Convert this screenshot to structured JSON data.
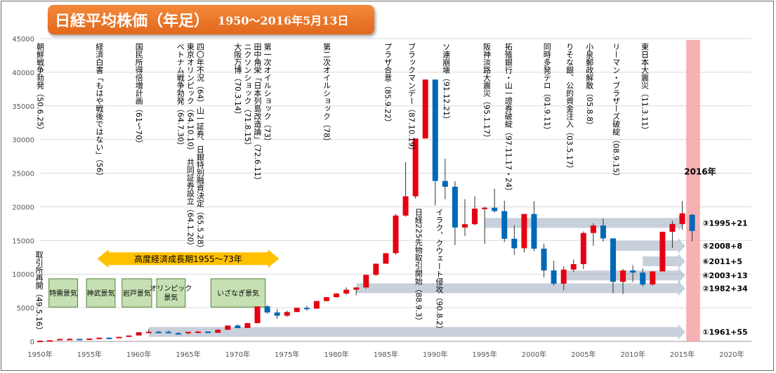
{
  "title": "日経平均株価（年足）",
  "subtitle": "1950～2016年5月13日",
  "chart_data": {
    "type": "candlestick",
    "y_ticks": [
      "0",
      "5000",
      "10000",
      "15000",
      "20000",
      "25000",
      "30000",
      "35000",
      "40000",
      "45000"
    ],
    "ylim": [
      0,
      45000
    ],
    "x_ticks": [
      "1950年",
      "1955年",
      "1960年",
      "1965年",
      "1970年",
      "1975年",
      "1980年",
      "1985年",
      "1990年",
      "1995年",
      "2000年",
      "2005年",
      "2010年",
      "2015年",
      "2020年"
    ],
    "xlim": [
      1950,
      2022
    ],
    "grid": "horizontal",
    "candles": [
      {
        "year": 1950,
        "open": 85,
        "high": 120,
        "low": 85,
        "close": 101
      },
      {
        "year": 1951,
        "open": 102,
        "high": 170,
        "low": 95,
        "close": 166
      },
      {
        "year": 1952,
        "open": 166,
        "high": 362,
        "low": 160,
        "close": 362
      },
      {
        "year": 1953,
        "open": 362,
        "high": 474,
        "low": 295,
        "close": 377
      },
      {
        "year": 1954,
        "open": 374,
        "high": 378,
        "low": 315,
        "close": 356
      },
      {
        "year": 1955,
        "open": 356,
        "high": 425,
        "low": 350,
        "close": 425
      },
      {
        "year": 1956,
        "open": 426,
        "high": 549,
        "low": 420,
        "close": 549
      },
      {
        "year": 1957,
        "open": 550,
        "high": 595,
        "low": 470,
        "close": 474
      },
      {
        "year": 1958,
        "open": 476,
        "high": 666,
        "low": 473,
        "close": 666
      },
      {
        "year": 1959,
        "open": 668,
        "high": 874,
        "low": 665,
        "close": 874
      },
      {
        "year": 1960,
        "open": 880,
        "high": 1356,
        "low": 870,
        "close": 1356
      },
      {
        "year": 1961,
        "open": 1360,
        "high": 1829,
        "low": 1258,
        "close": 1432
      },
      {
        "year": 1962,
        "open": 1430,
        "high": 1589,
        "low": 1216,
        "close": 1420
      },
      {
        "year": 1963,
        "open": 1420,
        "high": 1634,
        "low": 1200,
        "close": 1225
      },
      {
        "year": 1964,
        "open": 1225,
        "high": 1369,
        "low": 1202,
        "close": 1216
      },
      {
        "year": 1965,
        "open": 1216,
        "high": 1417,
        "low": 1020,
        "close": 1417
      },
      {
        "year": 1966,
        "open": 1420,
        "high": 1588,
        "low": 1400,
        "close": 1452
      },
      {
        "year": 1967,
        "open": 1455,
        "high": 1506,
        "low": 1250,
        "close": 1283
      },
      {
        "year": 1968,
        "open": 1285,
        "high": 1851,
        "low": 1266,
        "close": 1714
      },
      {
        "year": 1969,
        "open": 1716,
        "high": 2358,
        "low": 1700,
        "close": 2358
      },
      {
        "year": 1970,
        "open": 2360,
        "high": 2534,
        "low": 1929,
        "close": 1987
      },
      {
        "year": 1971,
        "open": 1990,
        "high": 2740,
        "low": 1981,
        "close": 2714
      },
      {
        "year": 1972,
        "open": 2712,
        "high": 5207,
        "low": 2700,
        "close": 5207
      },
      {
        "year": 1973,
        "open": 5210,
        "high": 5359,
        "low": 4100,
        "close": 4307
      },
      {
        "year": 1974,
        "open": 4310,
        "high": 4788,
        "low": 3355,
        "close": 3817
      },
      {
        "year": 1975,
        "open": 3820,
        "high": 4564,
        "low": 3630,
        "close": 4358
      },
      {
        "year": 1976,
        "open": 4360,
        "high": 4990,
        "low": 4358,
        "close": 4990
      },
      {
        "year": 1977,
        "open": 4990,
        "high": 5287,
        "low": 4597,
        "close": 4865
      },
      {
        "year": 1978,
        "open": 4868,
        "high": 6001,
        "low": 4867,
        "close": 6001
      },
      {
        "year": 1979,
        "open": 6002,
        "high": 6590,
        "low": 5934,
        "close": 6569
      },
      {
        "year": 1980,
        "open": 6570,
        "high": 7188,
        "low": 6475,
        "close": 7116
      },
      {
        "year": 1981,
        "open": 7116,
        "high": 8019,
        "low": 6957,
        "close": 7681
      },
      {
        "year": 1982,
        "open": 7682,
        "high": 8026,
        "low": 6849,
        "close": 8016
      },
      {
        "year": 1983,
        "open": 8017,
        "high": 9893,
        "low": 7803,
        "close": 9893
      },
      {
        "year": 1984,
        "open": 9895,
        "high": 11577,
        "low": 9703,
        "close": 11542
      },
      {
        "year": 1985,
        "open": 11543,
        "high": 13129,
        "low": 11545,
        "close": 13113
      },
      {
        "year": 1986,
        "open": 13114,
        "high": 18936,
        "low": 12881,
        "close": 18701
      },
      {
        "year": 1987,
        "open": 18702,
        "high": 26646,
        "low": 18544,
        "close": 21564
      },
      {
        "year": 1988,
        "open": 21565,
        "high": 30159,
        "low": 21217,
        "close": 30159
      },
      {
        "year": 1989,
        "open": 30160,
        "high": 38915,
        "low": 30183,
        "close": 38915
      },
      {
        "year": 1990,
        "open": 38916,
        "high": 38712,
        "low": 20221,
        "close": 23848
      },
      {
        "year": 1991,
        "open": 23849,
        "high": 27146,
        "low": 21123,
        "close": 22983
      },
      {
        "year": 1992,
        "open": 22984,
        "high": 23801,
        "low": 14309,
        "close": 16924
      },
      {
        "year": 1993,
        "open": 16925,
        "high": 21148,
        "low": 15671,
        "close": 17417
      },
      {
        "year": 1994,
        "open": 17418,
        "high": 21552,
        "low": 17242,
        "close": 19723
      },
      {
        "year": 1995,
        "open": 19724,
        "high": 20023,
        "low": 14485,
        "close": 19868
      },
      {
        "year": 1996,
        "open": 19869,
        "high": 22666,
        "low": 19161,
        "close": 19361
      },
      {
        "year": 1997,
        "open": 19362,
        "high": 20910,
        "low": 14775,
        "close": 15258
      },
      {
        "year": 1998,
        "open": 15259,
        "high": 17264,
        "low": 12879,
        "close": 13842
      },
      {
        "year": 1999,
        "open": 13843,
        "high": 18934,
        "low": 13232,
        "close": 18934
      },
      {
        "year": 2000,
        "open": 18935,
        "high": 20833,
        "low": 13423,
        "close": 13785
      },
      {
        "year": 2001,
        "open": 13786,
        "high": 14529,
        "low": 9504,
        "close": 10542
      },
      {
        "year": 2002,
        "open": 10543,
        "high": 11979,
        "low": 8303,
        "close": 8578
      },
      {
        "year": 2003,
        "open": 8579,
        "high": 11161,
        "low": 7607,
        "close": 10676
      },
      {
        "year": 2004,
        "open": 10677,
        "high": 12163,
        "low": 10299,
        "close": 11488
      },
      {
        "year": 2005,
        "open": 11489,
        "high": 16344,
        "low": 10770,
        "close": 16111
      },
      {
        "year": 2006,
        "open": 16112,
        "high": 17563,
        "low": 14218,
        "close": 17225
      },
      {
        "year": 2007,
        "open": 17226,
        "high": 18261,
        "low": 14837,
        "close": 15307
      },
      {
        "year": 2008,
        "open": 15308,
        "high": 15156,
        "low": 7162,
        "close": 8859
      },
      {
        "year": 2009,
        "open": 8860,
        "high": 10767,
        "low": 7054,
        "close": 10546
      },
      {
        "year": 2010,
        "open": 10547,
        "high": 11339,
        "low": 8824,
        "close": 10228
      },
      {
        "year": 2011,
        "open": 10229,
        "high": 10857,
        "low": 8160,
        "close": 8455
      },
      {
        "year": 2012,
        "open": 8456,
        "high": 10395,
        "low": 8295,
        "close": 10395
      },
      {
        "year": 2013,
        "open": 10396,
        "high": 16320,
        "low": 10398,
        "close": 16291
      },
      {
        "year": 2014,
        "open": 16292,
        "high": 17935,
        "low": 13885,
        "close": 17450
      },
      {
        "year": 2015,
        "open": 17451,
        "high": 20868,
        "low": 16592,
        "close": 19033
      },
      {
        "year": 2016,
        "open": 18818,
        "high": 18951,
        "low": 14865,
        "close": 16412
      }
    ],
    "up_color": "#e60012",
    "down_color": "#0068b7",
    "highlight": {
      "from": 2015.4,
      "to": 2016.8,
      "color": "#f4a3a6",
      "label": "2016年"
    },
    "events": [
      {
        "year": 1950,
        "text": "朝鮮戦争勃発（50.6.25）",
        "top": true
      },
      {
        "year": 1956,
        "text": "経済白書「もはや戦後ではない」（56）",
        "top": true
      },
      {
        "year": 1960,
        "text": "国民所得倍増計画（61～70）",
        "top": true
      },
      {
        "year": 1964.2,
        "text": "ベトナム戦争勃発（64.7.30）",
        "top": true
      },
      {
        "year": 1965.2,
        "text": "東京オリンピック（64.10.10）　共同証券設立（64.1.20）",
        "top": true
      },
      {
        "year": 1966.2,
        "text": "四〇年不況（64）山一証券、日銀特別融資決定（65.5.28）",
        "top": true
      },
      {
        "year": 1970,
        "text": "大阪万博（70.3.14）",
        "top": true
      },
      {
        "year": 1971,
        "text": "ニクソンショック（71.8.15）",
        "top": true
      },
      {
        "year": 1972,
        "text": "田中角栄「日本列島改造論」（72.6.11）",
        "top": true
      },
      {
        "year": 1973,
        "text": "第一次オイルショック（73）",
        "top": true
      },
      {
        "year": 1979,
        "text": "第二次オイルショック（78）",
        "top": true
      },
      {
        "year": 1985.2,
        "text": "プラザ合意（85.9.22）",
        "top": true
      },
      {
        "year": 1987.6,
        "text": "ブラックマンデー（87.10.19）",
        "top": true
      },
      {
        "year": 1991.1,
        "text": "ソ連崩壊（91.12.21）",
        "top": true
      },
      {
        "year": 1995.2,
        "text": "阪神淡路大震災（95.1.17）",
        "top": true
      },
      {
        "year": 1997.4,
        "text": "拓殖銀行・山一證券破綻（97.11.17・24）",
        "top": true
      },
      {
        "year": 2001.3,
        "text": "同時多発テロ（01.9.11）",
        "top": true
      },
      {
        "year": 2003.6,
        "text": "りそな銀、公的資金注入（03.5.17）",
        "top": true
      },
      {
        "year": 2005.6,
        "text": "小泉郵政解散（05.8.8）",
        "top": true
      },
      {
        "year": 2008.3,
        "text": "リーマン・ブラザーズ破綻（08.9.15）",
        "top": true
      },
      {
        "year": 2011.2,
        "text": "東日本大震災（11.3.11）",
        "top": true
      },
      {
        "year": 1988.3,
        "text": "日経225先物取引開始（88.9.3）",
        "top": false
      },
      {
        "year": 1990.4,
        "text": "イラク、クウェート侵攻（90.8.2）",
        "top": false
      },
      {
        "year": 1949.9,
        "text": "取引所再開（49.5.16）",
        "top": false
      }
    ],
    "arrows": [
      {
        "from": 1961,
        "to": 2015.3,
        "level": 1400,
        "label": "①1961+55"
      },
      {
        "from": 1982,
        "to": 2015.3,
        "level": 7900,
        "label": "②1982+34"
      },
      {
        "from": 1995,
        "to": 2015.3,
        "level": 17600,
        "label": "③1995+21"
      },
      {
        "from": 2003,
        "to": 2015.3,
        "level": 9800,
        "label": "④2003+13"
      },
      {
        "from": 2008,
        "to": 2015.3,
        "level": 14200,
        "label": "⑤2008+8"
      },
      {
        "from": 2011,
        "to": 2015.3,
        "level": 11900,
        "label": "⑥2011+5"
      }
    ],
    "era": {
      "text": "高度経済成長期1955～73年",
      "from": 1955.8,
      "to": 1974.2,
      "level": 12300,
      "color": "#ffc000"
    },
    "booms": [
      {
        "text": "特需景気",
        "from": 1950.9,
        "to": 1953.8
      },
      {
        "text": "神武景気",
        "from": 1954.7,
        "to": 1957.6
      },
      {
        "text": "岩戸景気",
        "from": 1958.3,
        "to": 1961.3
      },
      {
        "text": "オリンピック景気",
        "from": 1961.8,
        "to": 1964.7
      },
      {
        "text": "いざなぎ景気",
        "from": 1967.3,
        "to": 1972.8
      }
    ]
  }
}
